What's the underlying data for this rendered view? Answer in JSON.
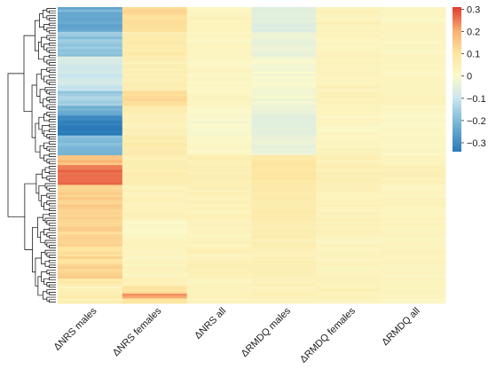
{
  "chart_data": {
    "type": "heatmap",
    "title": "",
    "columns": [
      "ΔNRS males",
      "ΔNRS females",
      "ΔNRS all",
      "ΔRMDQ males",
      "ΔRMDQ females",
      "ΔRMDQ all"
    ],
    "row_dendrogram": true,
    "row_count_approx": 120,
    "row_clusters": [
      {
        "name": "",
        "row_fraction": 0.53,
        "typical_values": [
          -0.18,
          0.09,
          0.03,
          -0.03,
          0.04,
          0.02
        ]
      },
      {
        "name": "",
        "row_fraction": 0.47,
        "typical_values": [
          0.15,
          0.02,
          0.04,
          0.07,
          0.04,
          0.03
        ]
      }
    ],
    "row_bands": [
      {
        "rows": [
          0,
          3
        ],
        "values": [
          -0.22,
          0.13,
          0.03,
          -0.05,
          0.04,
          0.03
        ]
      },
      {
        "rows": [
          3,
          10
        ],
        "values": [
          -0.24,
          0.11,
          0.03,
          -0.06,
          0.04,
          0.02
        ]
      },
      {
        "rows": [
          10,
          20
        ],
        "values": [
          -0.18,
          0.07,
          0.02,
          -0.03,
          0.03,
          0.02
        ]
      },
      {
        "rows": [
          20,
          30
        ],
        "values": [
          -0.08,
          0.05,
          0.02,
          -0.01,
          0.03,
          0.02
        ]
      },
      {
        "rows": [
          30,
          34
        ],
        "values": [
          -0.1,
          0.06,
          0.02,
          -0.01,
          0.04,
          0.02
        ]
      },
      {
        "rows": [
          34,
          40
        ],
        "values": [
          -0.16,
          0.12,
          0.02,
          -0.02,
          0.04,
          0.03
        ]
      },
      {
        "rows": [
          40,
          44
        ],
        "values": [
          -0.23,
          0.06,
          0.01,
          -0.03,
          0.03,
          0.02
        ]
      },
      {
        "rows": [
          44,
          52
        ],
        "values": [
          -0.32,
          0.04,
          -0.01,
          -0.05,
          0.02,
          0.01
        ]
      },
      {
        "rows": [
          52,
          60
        ],
        "values": [
          -0.2,
          0.07,
          0.01,
          -0.04,
          0.03,
          0.02
        ]
      },
      {
        "rows": [
          60,
          64
        ],
        "values": [
          0.18,
          0.05,
          0.05,
          0.09,
          0.05,
          0.04
        ]
      },
      {
        "rows": [
          64,
          72
        ],
        "values": [
          0.27,
          0.06,
          0.05,
          0.09,
          0.05,
          0.04
        ]
      },
      {
        "rows": [
          72,
          86
        ],
        "values": [
          0.15,
          0.04,
          0.04,
          0.07,
          0.04,
          0.03
        ]
      },
      {
        "rows": [
          86,
          94
        ],
        "values": [
          0.13,
          0.01,
          0.03,
          0.06,
          0.04,
          0.03
        ]
      },
      {
        "rows": [
          94,
          104
        ],
        "values": [
          0.12,
          0.03,
          0.04,
          0.05,
          0.03,
          0.03
        ]
      },
      {
        "rows": [
          104,
          110
        ],
        "values": [
          0.13,
          0.03,
          0.04,
          0.05,
          0.03,
          0.03
        ]
      },
      {
        "rows": [
          110,
          113
        ],
        "values": [
          0.08,
          0.04,
          0.03,
          0.04,
          0.03,
          0.03
        ]
      },
      {
        "rows": [
          113,
          116
        ],
        "values": [
          0.05,
          0.1,
          0.04,
          0.04,
          0.04,
          0.03
        ]
      },
      {
        "rows": [
          116,
          118
        ],
        "values": [
          0.06,
          0.22,
          0.05,
          0.05,
          0.04,
          0.03
        ]
      },
      {
        "rows": [
          118,
          120
        ],
        "values": [
          0.04,
          0.09,
          0.03,
          0.03,
          0.03,
          0.02
        ]
      }
    ],
    "color_scale": {
      "range": [
        -0.34,
        0.31
      ],
      "ticks": [
        0.3,
        0.2,
        0.1,
        0,
        -0.1,
        -0.2,
        -0.3
      ],
      "tick_labels": [
        "0.3",
        "0.2",
        "0.1",
        "0",
        "−0.1",
        "−0.2",
        "−0.3"
      ],
      "stops": [
        {
          "value": -0.34,
          "color": "#2a7ab8"
        },
        {
          "value": -0.2,
          "color": "#7fbad8"
        },
        {
          "value": -0.1,
          "color": "#cbe6ee"
        },
        {
          "value": 0,
          "color": "#fbf9cb"
        },
        {
          "value": 0.1,
          "color": "#fde6a0"
        },
        {
          "value": 0.2,
          "color": "#f9b273"
        },
        {
          "value": 0.31,
          "color": "#e03a30"
        }
      ]
    },
    "legend_position": "right"
  }
}
